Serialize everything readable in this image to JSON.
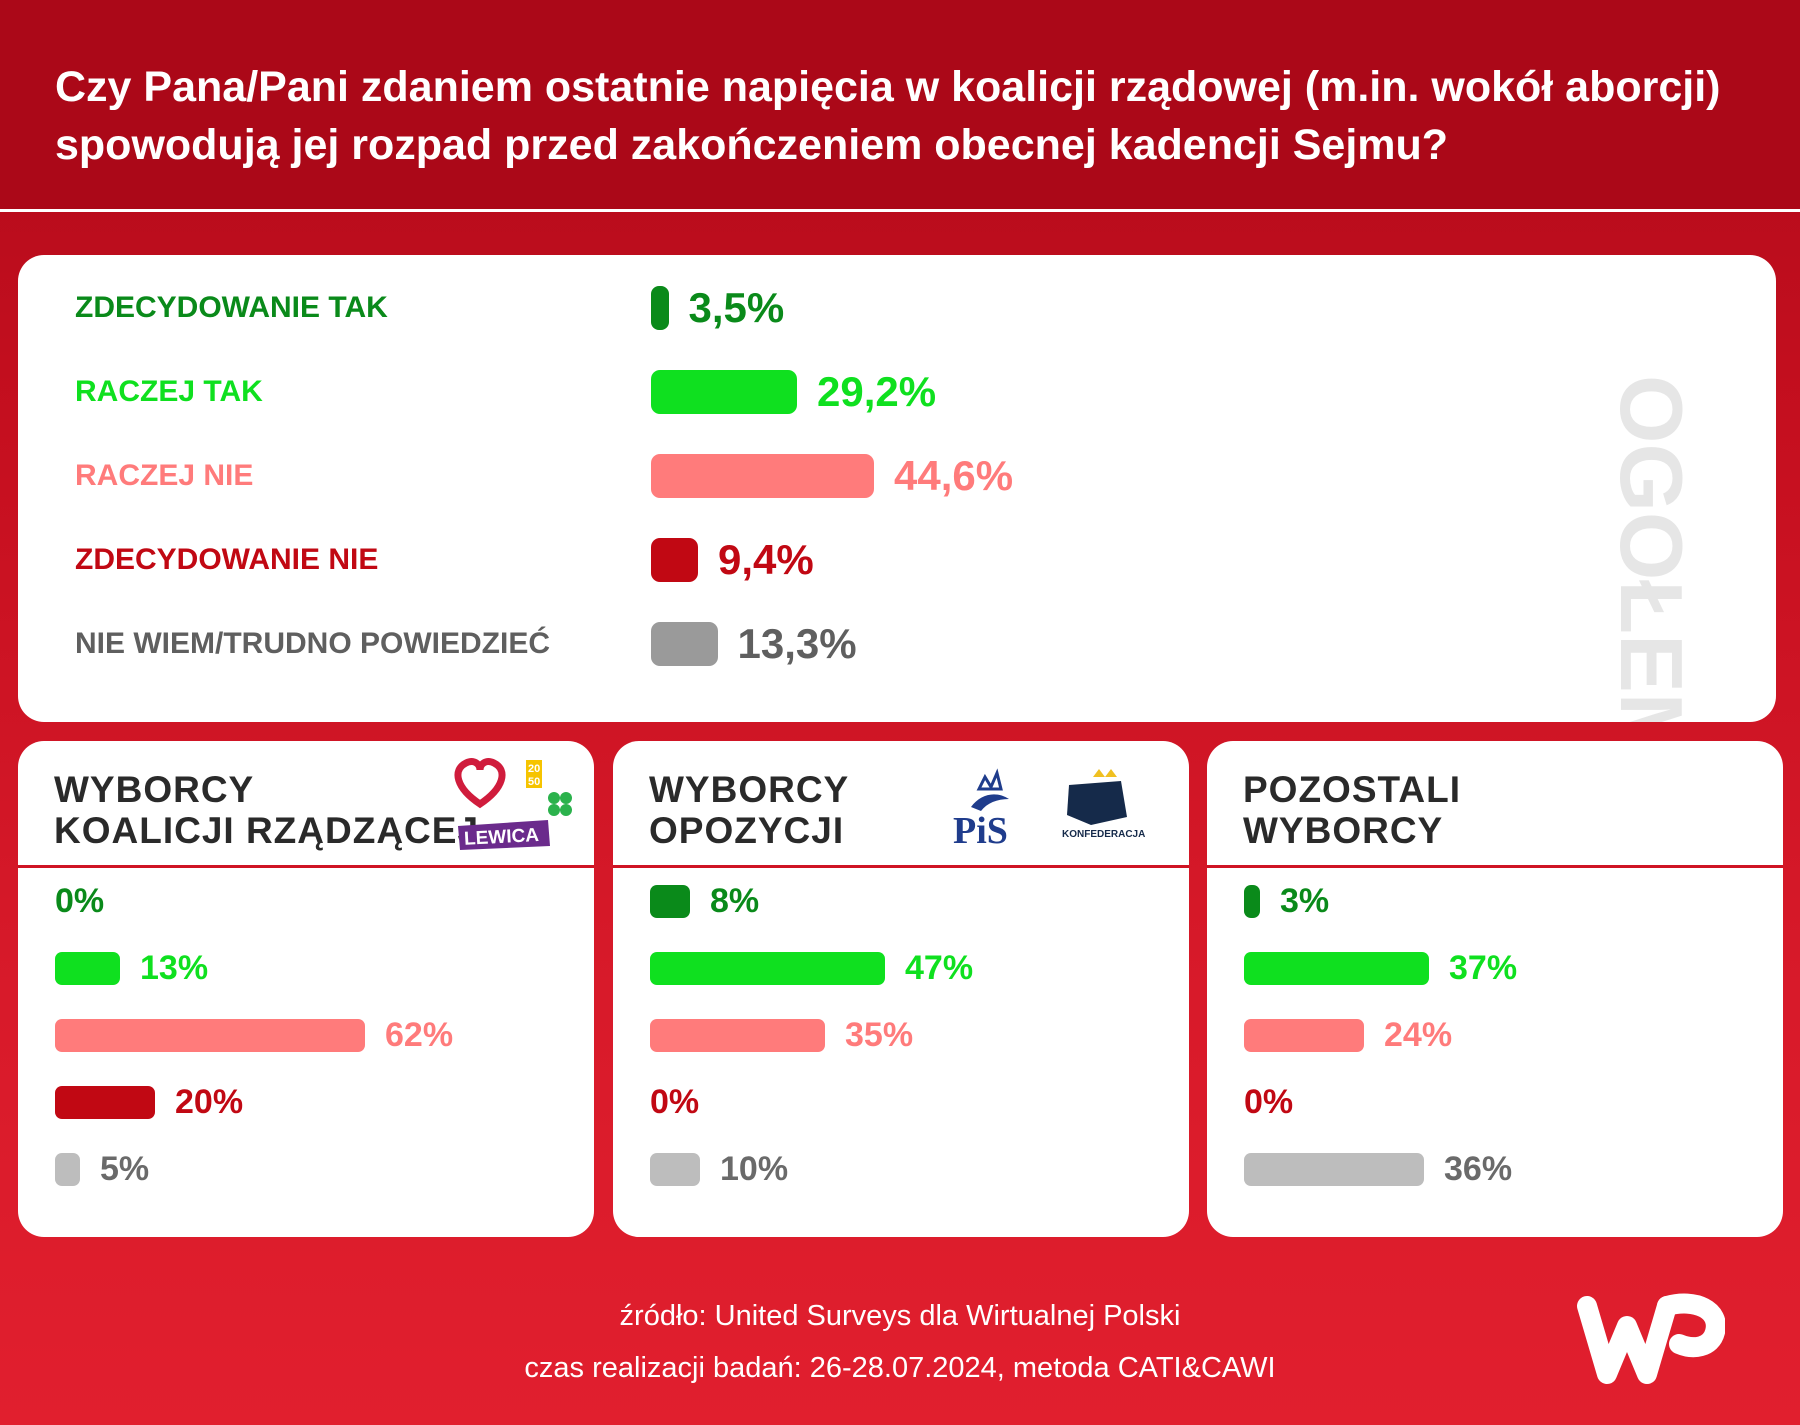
{
  "title": "Czy Pana/Pani zdaniem ostatnie napięcia w koalicji rządowej (m.in. wokół aborcji) spowodują jej rozpad przed zakończeniem obecnej kadencji Sejmu?",
  "colors": {
    "zdecydowanie_tak": "#0a8a1a",
    "raczej_tak": "#0fe01f",
    "raczej_nie": "#ff7b7b",
    "zdecydowanie_nie": "#c10813",
    "nie_wiem": "#9a9a9a",
    "nie_wiem_light": "#bdbdbd"
  },
  "overall": {
    "side_label": "OGÓŁEM",
    "labels": [
      "ZDECYDOWANIE TAK",
      "RACZEJ TAK",
      "RACZEJ NIE",
      "ZDECYDOWANIE NIE",
      "NIE WIEM/TRUDNO POWIEDZIEĆ"
    ],
    "value_labels": [
      "3,5%",
      "29,2%",
      "44,6%",
      "9,4%",
      "13,3%"
    ]
  },
  "groups": [
    {
      "title_line1": "WYBORCY",
      "title_line2": "KOALICJI RZĄDZĄCEJ",
      "value_labels": [
        "0%",
        "13%",
        "62%",
        "20%",
        "5%"
      ],
      "logos": [
        "heart-logo",
        "2050-logo",
        "clover-logo",
        "LEWICA"
      ]
    },
    {
      "title_line1": "WYBORCY",
      "title_line2": "OPOZYCJI",
      "value_labels": [
        "8%",
        "47%",
        "35%",
        "0%",
        "10%"
      ],
      "logos": [
        "PiS",
        "KONFEDERACJA"
      ]
    },
    {
      "title_line1": "POZOSTALI",
      "title_line2": "WYBORCY",
      "value_labels": [
        "3%",
        "37%",
        "24%",
        "0%",
        "36%"
      ],
      "logos": []
    }
  ],
  "chart_data": [
    {
      "type": "bar",
      "title": "OGÓŁEM",
      "categories": [
        "ZDECYDOWANIE TAK",
        "RACZEJ TAK",
        "RACZEJ NIE",
        "ZDECYDOWANIE NIE",
        "NIE WIEM/TRUDNO POWIEDZIEĆ"
      ],
      "values": [
        3.5,
        29.2,
        44.6,
        9.4,
        13.3
      ]
    },
    {
      "type": "bar",
      "title": "WYBORCY KOALICJI RZĄDZĄCEJ",
      "categories": [
        "ZDECYDOWANIE TAK",
        "RACZEJ TAK",
        "RACZEJ NIE",
        "ZDECYDOWANIE NIE",
        "NIE WIEM/TRUDNO POWIEDZIEĆ"
      ],
      "values": [
        0,
        13,
        62,
        20,
        5
      ]
    },
    {
      "type": "bar",
      "title": "WYBORCY OPOZYCJI",
      "categories": [
        "ZDECYDOWANIE TAK",
        "RACZEJ TAK",
        "RACZEJ NIE",
        "ZDECYDOWANIE NIE",
        "NIE WIEM/TRUDNO POWIEDZIEĆ"
      ],
      "values": [
        8,
        47,
        35,
        0,
        10
      ]
    },
    {
      "type": "bar",
      "title": "POZOSTALI WYBORCY",
      "categories": [
        "ZDECYDOWANIE TAK",
        "RACZEJ TAK",
        "RACZEJ NIE",
        "ZDECYDOWANIE NIE",
        "NIE WIEM/TRUDNO POWIEDZIEĆ"
      ],
      "values": [
        3,
        37,
        24,
        0,
        36
      ]
    }
  ],
  "footer": {
    "source": "źródło: United Surveys dla Wirtualnej Polski",
    "method": "czas realizacji badań: 26-28.07.2024, metoda CATI&CAWI",
    "brand": "WP"
  }
}
